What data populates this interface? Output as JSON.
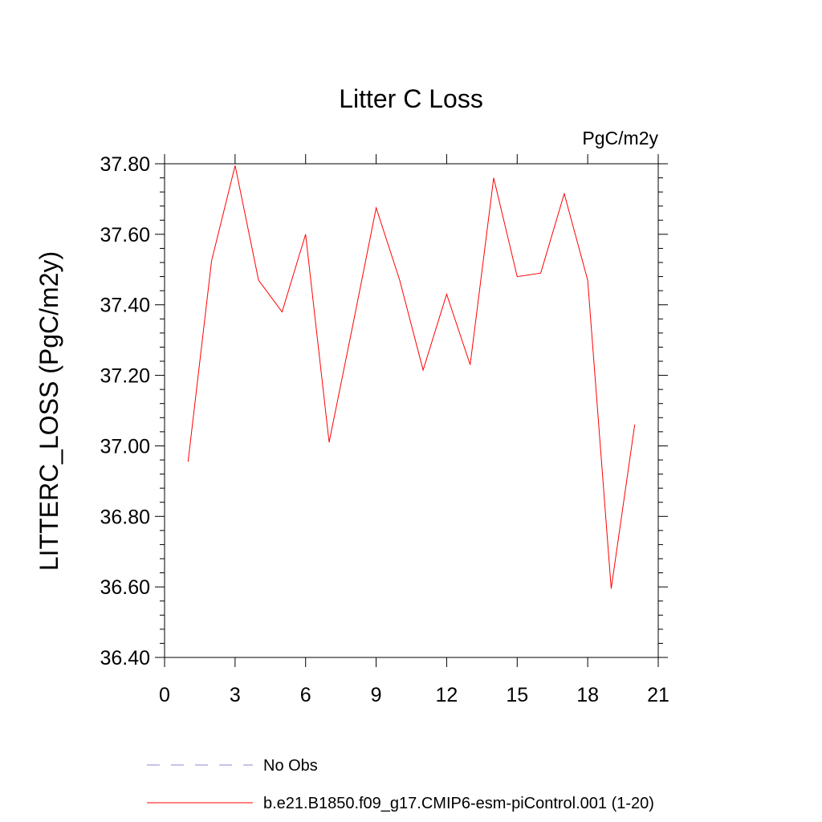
{
  "chart_data": {
    "type": "line",
    "title": "Litter C Loss",
    "units_label": "PgC/m2y",
    "ylabel": "LITTERC_LOSS  (PgC/m2y)",
    "xlabel": "",
    "xlim": [
      0,
      21
    ],
    "ylim": [
      36.4,
      37.8
    ],
    "x_ticks": [
      0,
      3,
      6,
      9,
      12,
      15,
      18,
      21
    ],
    "x_tick_labels": [
      "0",
      "3",
      "6",
      "9",
      "12",
      "15",
      "18",
      "21"
    ],
    "y_ticks": [
      36.4,
      36.6,
      36.8,
      37.0,
      37.2,
      37.4,
      37.6,
      37.8
    ],
    "y_tick_labels": [
      "36.40",
      "36.60",
      "36.80",
      "37.00",
      "37.20",
      "37.40",
      "37.60",
      "37.80"
    ],
    "grid": false,
    "legend_position": "bottom",
    "series": [
      {
        "name": "b.e21.B1850.f09_g17.CMIP6-esm-piControl.001 (1-20)",
        "color": "#ff0000",
        "style": "solid",
        "x": [
          1,
          2,
          3,
          4,
          5,
          6,
          7,
          8,
          9,
          10,
          11,
          12,
          13,
          14,
          15,
          16,
          17,
          18,
          19,
          20
        ],
        "values": [
          36.955,
          37.525,
          37.795,
          37.47,
          37.38,
          37.6,
          37.01,
          37.34,
          37.675,
          37.47,
          37.215,
          37.43,
          37.23,
          37.76,
          37.48,
          37.49,
          37.715,
          37.47,
          36.595,
          37.06
        ]
      }
    ],
    "legend": [
      {
        "label": "No Obs",
        "color": "#8a8ad0",
        "style": "dashed"
      },
      {
        "label": "b.e21.B1850.f09_g17.CMIP6-esm-piControl.001 (1-20)",
        "color": "#ff0000",
        "style": "solid"
      }
    ]
  }
}
